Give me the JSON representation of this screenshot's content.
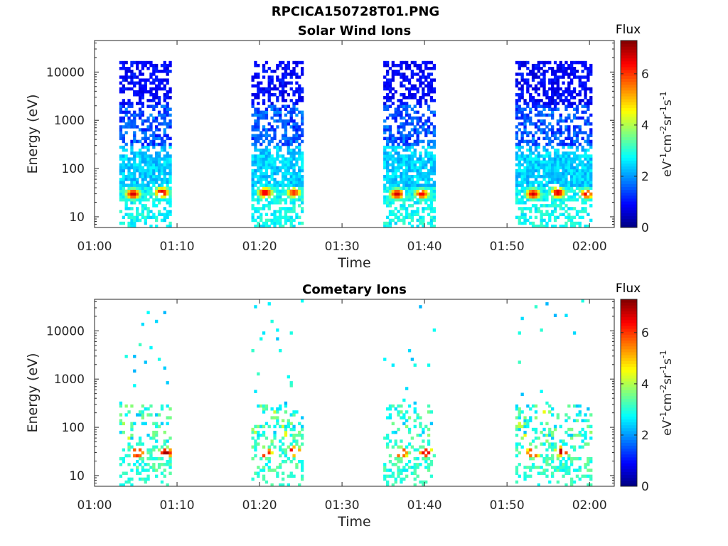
{
  "figure": {
    "title": "RPCICA150728T01.PNG"
  },
  "colorbar": {
    "label": "Flux",
    "unit_base": "eV",
    "unit_exp1": "-1",
    "unit_cm": "cm",
    "unit_exp2": "-2",
    "unit_sr": "sr",
    "unit_exp3": "-1",
    "unit_s": "s",
    "unit_exp4": "-1",
    "ticks": [
      "0",
      "2",
      "4",
      "6"
    ],
    "range": [
      0,
      7.3
    ],
    "colormap": "jet"
  },
  "chart_data": [
    {
      "type": "heatmap",
      "title": "Solar Wind Ions",
      "xlabel": "Time",
      "ylabel": "Energy (eV)",
      "x_ticks": [
        "01:00",
        "01:10",
        "01:20",
        "01:30",
        "01:40",
        "01:50",
        "02:00"
      ],
      "y_ticks": [
        "10",
        "100",
        "1000",
        "10000"
      ],
      "y_scale": "log",
      "ylim": [
        6,
        45000
      ],
      "xlim": [
        "01:00",
        "02:03"
      ],
      "grid": false,
      "measurement_intervals": [
        [
          "01:03",
          "01:09"
        ],
        [
          "01:19",
          "01:25"
        ],
        [
          "01:35",
          "01:41"
        ],
        [
          "01:51",
          "02:00"
        ]
      ],
      "flux_peaks": [
        {
          "time": "01:04.5",
          "energy": 30,
          "flux": 6.8
        },
        {
          "time": "01:08",
          "energy": 32,
          "flux": 6.8
        },
        {
          "time": "01:20.5",
          "energy": 32,
          "flux": 6.8
        },
        {
          "time": "01:24",
          "energy": 32,
          "flux": 6.2
        },
        {
          "time": "01:36.5",
          "energy": 30,
          "flux": 6.8
        },
        {
          "time": "01:39.5",
          "energy": 30,
          "flux": 6.5
        },
        {
          "time": "01:53",
          "energy": 30,
          "flux": 6.8
        },
        {
          "time": "01:56",
          "energy": 32,
          "flux": 6.8
        },
        {
          "time": "01:59.5",
          "energy": 30,
          "flux": 6.5
        }
      ],
      "background_flux_range": [
        0.8,
        3.0
      ]
    },
    {
      "type": "heatmap",
      "title": "Cometary Ions",
      "xlabel": "Time",
      "ylabel": "Energy (eV)",
      "x_ticks": [
        "01:00",
        "01:10",
        "01:20",
        "01:30",
        "01:40",
        "01:50",
        "02:00"
      ],
      "y_ticks": [
        "10",
        "100",
        "1000",
        "10000"
      ],
      "y_scale": "log",
      "ylim": [
        6,
        45000
      ],
      "xlim": [
        "01:00",
        "02:03"
      ],
      "grid": false,
      "measurement_intervals": [
        [
          "01:03",
          "01:09"
        ],
        [
          "01:19",
          "01:25"
        ],
        [
          "01:35",
          "01:41"
        ],
        [
          "01:51",
          "02:00"
        ]
      ],
      "flux_peaks": [
        {
          "time": "01:05",
          "energy": 30,
          "flux": 7.2
        },
        {
          "time": "01:08.5",
          "energy": 30,
          "flux": 7.2
        },
        {
          "time": "01:20.5",
          "energy": 30,
          "flux": 7.2
        },
        {
          "time": "01:24",
          "energy": 32,
          "flux": 7.2
        },
        {
          "time": "01:37",
          "energy": 30,
          "flux": 7.2
        },
        {
          "time": "01:40",
          "energy": 30,
          "flux": 7.0
        },
        {
          "time": "01:53",
          "energy": 30,
          "flux": 7.2
        },
        {
          "time": "01:56.5",
          "energy": 32,
          "flux": 7.2
        },
        {
          "time": "01:59.5",
          "energy": 30,
          "flux": 7.0
        }
      ],
      "background_flux_range": [
        2.0,
        4.0
      ]
    }
  ]
}
